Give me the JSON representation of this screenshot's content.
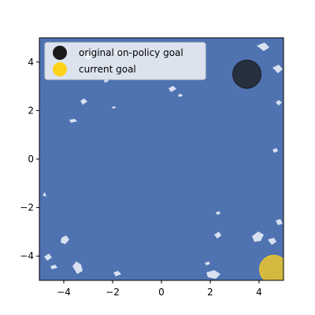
{
  "chart_data": {
    "type": "scatter",
    "title": "",
    "xlabel": "",
    "ylabel": "",
    "xlim": [
      -5,
      5
    ],
    "ylim": [
      -5,
      5
    ],
    "xticks": [
      -4,
      -2,
      0,
      2,
      4
    ],
    "yticks": [
      -4,
      -2,
      0,
      2,
      4
    ],
    "grid": false,
    "legend_position": "top-left",
    "background_color": "#4f73b1",
    "series": [
      {
        "name": "original on-policy goal",
        "color": "#1a1a1a",
        "x": [
          3.5
        ],
        "y": [
          3.5
        ]
      },
      {
        "name": "current goal",
        "color": "#ffd21a",
        "x": [
          4.6
        ],
        "y": [
          -4.55
        ]
      }
    ]
  }
}
